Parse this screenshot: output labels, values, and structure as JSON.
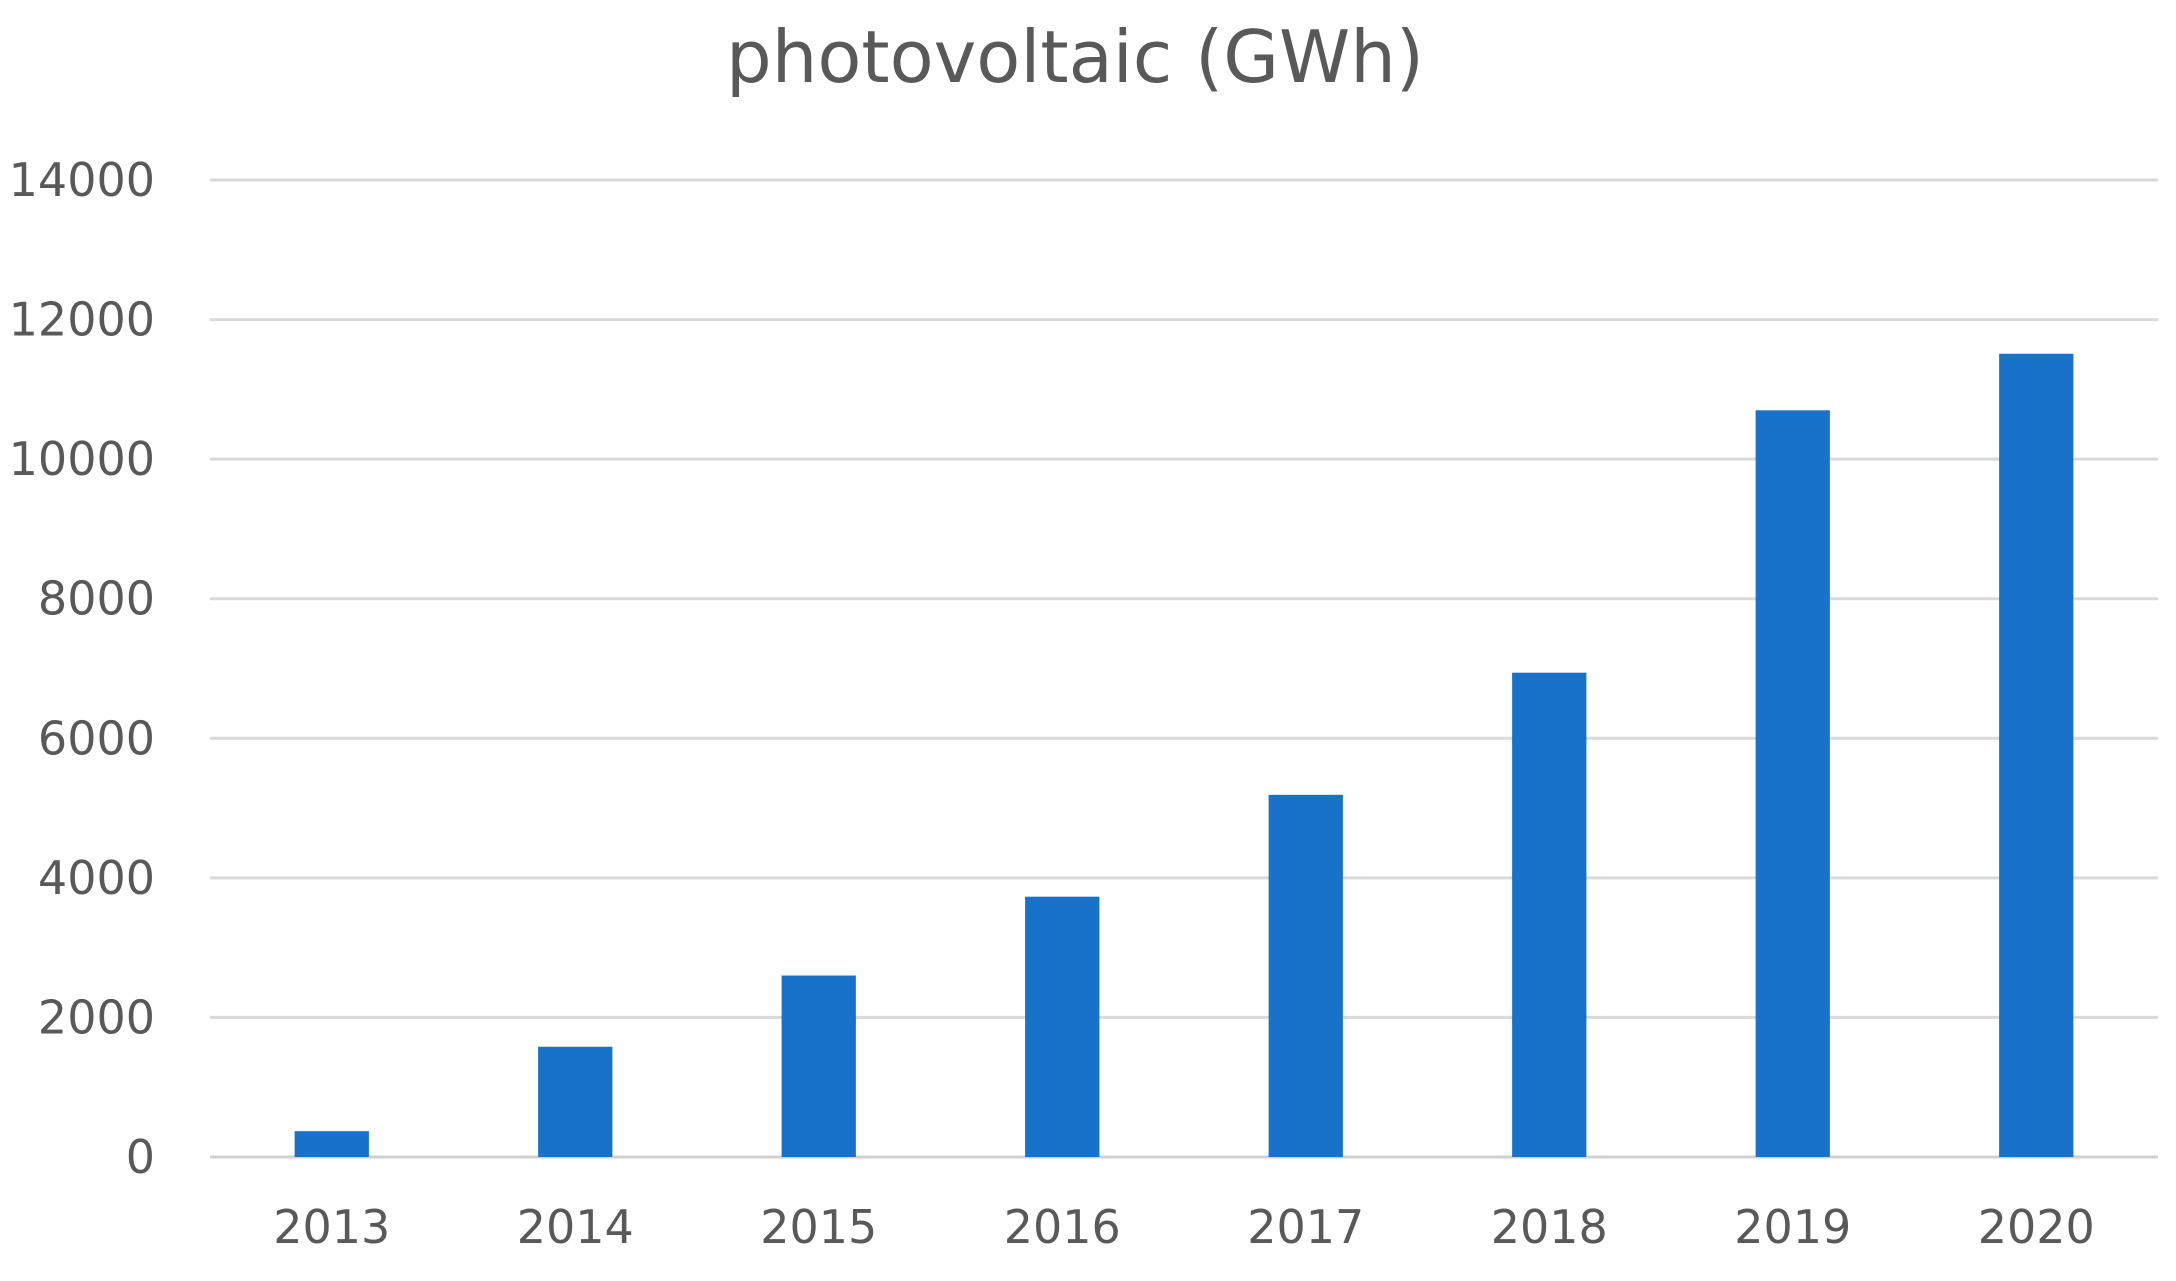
{
  "chart_data": {
    "type": "bar",
    "title": "photovoltaic (GWh)",
    "categories": [
      "2013",
      "2014",
      "2015",
      "2016",
      "2017",
      "2018",
      "2019",
      "2020"
    ],
    "series": [
      {
        "values": [
          370,
          1580,
          2600,
          3730,
          5190,
          6940,
          10700,
          11510
        ],
        "color": "#1872C9"
      }
    ],
    "ylim": [
      0,
      14000
    ],
    "yticks": [
      0,
      2000,
      4000,
      6000,
      8000,
      10000,
      12000,
      14000
    ],
    "ytick_labels": [
      "0",
      "2000",
      "4000",
      "6000",
      "8000",
      "10000",
      "12000",
      "14000"
    ],
    "grid": true,
    "legend": "none"
  }
}
